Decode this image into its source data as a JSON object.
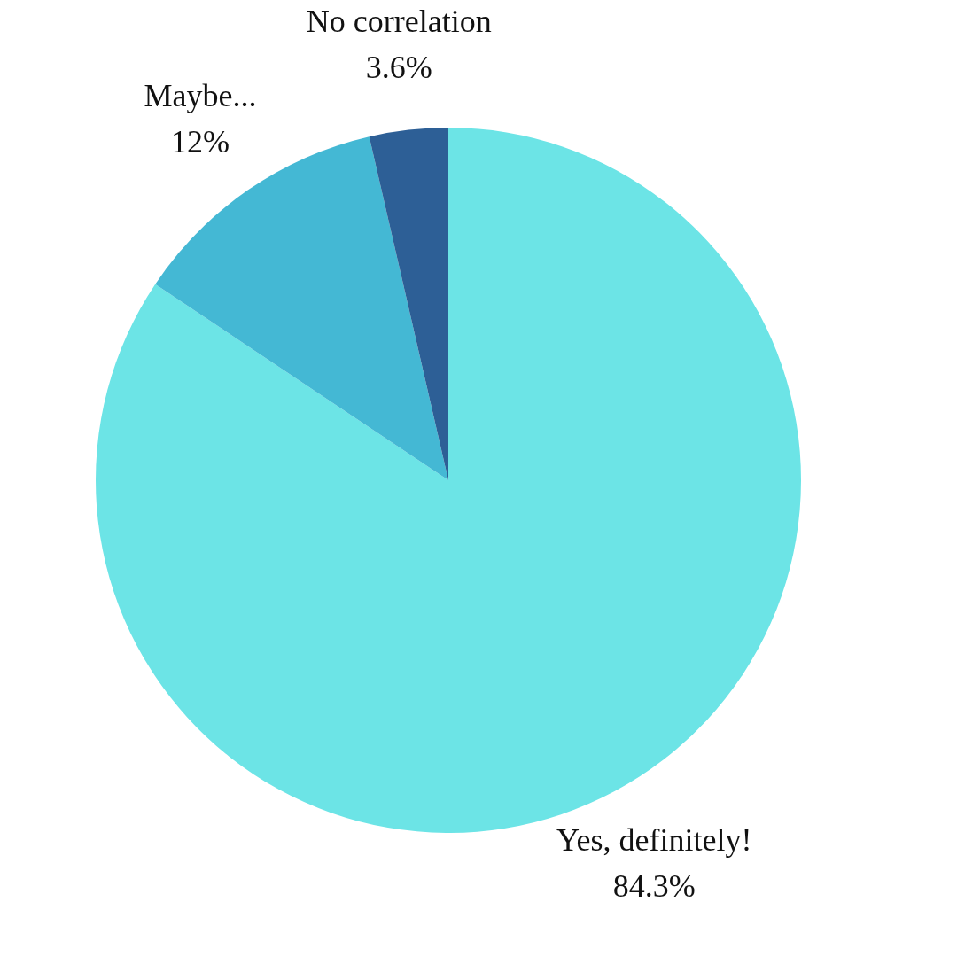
{
  "chart_data": {
    "type": "pie",
    "categories": [
      "Yes, definitely!",
      "Maybe...",
      "No correlation"
    ],
    "values": [
      84.3,
      12,
      3.6
    ],
    "value_labels": [
      "84.3%",
      "12%",
      "3.6%"
    ],
    "colors": [
      "#6ce4e6",
      "#44b8d4",
      "#2d5f96"
    ]
  }
}
